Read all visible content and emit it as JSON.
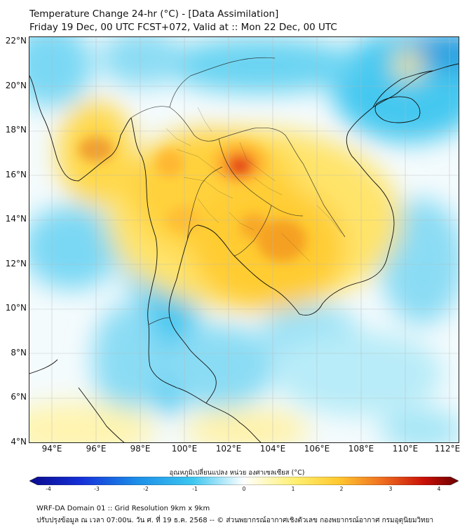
{
  "header": {
    "title": "Temperature Change 24-hr (°C) - [Data Assimilation]",
    "subtitle": "Friday 19 Dec, 00 UTC FCST+072, Valid at :: Mon 22 Dec, 00 UTC"
  },
  "map": {
    "lat_labels": [
      "22°N",
      "20°N",
      "18°N",
      "16°N",
      "14°N",
      "12°N",
      "10°N",
      "8°N",
      "6°N",
      "4°N"
    ],
    "lon_labels": [
      "94°E",
      "96°E",
      "98°E",
      "100°E",
      "102°E",
      "104°E",
      "106°E",
      "108°E",
      "110°E",
      "112°E"
    ]
  },
  "colorbar": {
    "title": "อุณหภูมิเปลี่ยนแปลง หน่วย องศาเซลเซียส (°C)",
    "ticks": [
      "-4",
      "-3",
      "-2",
      "-1",
      "0",
      "1",
      "2",
      "3",
      "4"
    ],
    "min": -4,
    "max": 4
  },
  "footer": {
    "line1": "WRF-DA Domain 01 :: Grid Resolution 9km x 9km",
    "line2": "ปรับปรุงข้อมูล ณ เวลา 07:00น. วัน ศ. ที่ 19 ธ.ค. 2568 -- © ส่วนพยากรณ์อากาศเชิงตัวเลข กองพยากรณ์อากาศ กรมอุตุนิยมวิทยา"
  },
  "colors": {
    "cold_dark": "#0a0a8c",
    "cold": "#3cc6f0",
    "neutral": "#ffffff",
    "warm": "#ffdf40",
    "hot": "#e83010",
    "hot_dark": "#6b0000"
  }
}
